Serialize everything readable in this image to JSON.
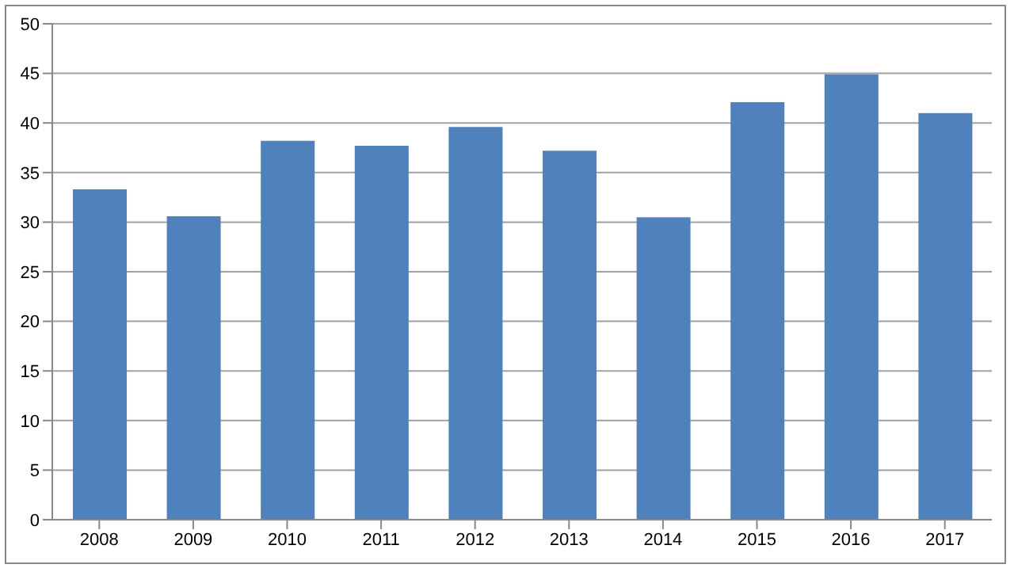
{
  "chart_data": {
    "type": "bar",
    "categories": [
      "2008",
      "2009",
      "2010",
      "2011",
      "2012",
      "2013",
      "2014",
      "2015",
      "2016",
      "2017"
    ],
    "values": [
      33.3,
      30.6,
      38.2,
      37.7,
      39.6,
      37.2,
      30.5,
      42.1,
      44.9,
      41.0
    ],
    "color": "#4f81bd",
    "ylim": [
      0,
      50
    ],
    "yticks": [
      0,
      5,
      10,
      15,
      20,
      25,
      30,
      35,
      40,
      45,
      50
    ],
    "grid": "y",
    "legend": false
  }
}
